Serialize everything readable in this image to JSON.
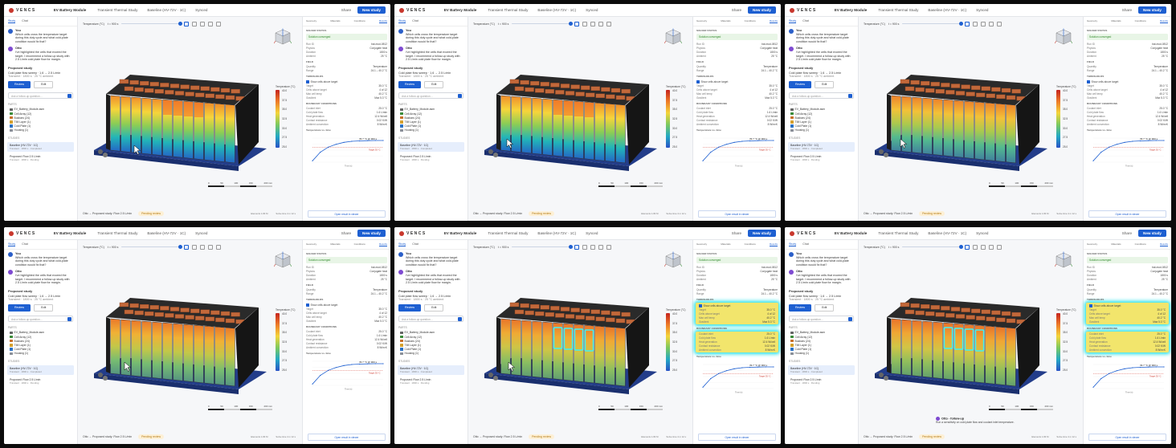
{
  "app": {
    "brand": "VENCS",
    "title": "EV Battery Module",
    "tab_study": "Transient Thermal Study",
    "baseline": "Baseline (HV-72V · 1C)",
    "sync": "Synced",
    "share": "Share",
    "new_study": "New study"
  },
  "left": {
    "tabs": [
      "Study",
      "Chat"
    ],
    "messages": [
      {
        "role": "You",
        "time": "09:41",
        "text": "Which cells cross the temperature target during this duty cycle and what cold-plate condition would fix that?"
      },
      {
        "role": "Otto",
        "time": "09:41",
        "text": "I've highlighted the cells that exceed the target. I recommend a follow-up study with 2.5 L/min cold plate flow for margin."
      }
    ],
    "proposed": {
      "title": "Proposed study",
      "desc": "Cold plate flow sweep · 1.6 → 2.5 L/min",
      "desc2": "Transient · 1800 s · 25 °C ambient",
      "accept": "Review",
      "edit": "Edit"
    },
    "ask_placeholder": "Ask a follow-up question…",
    "parts_header": "PARTS",
    "parts": [
      {
        "label": "EV_Battery_Module.asm",
        "color": "#666"
      },
      {
        "label": "Cell Array (12)",
        "color": "#3a8c3a"
      },
      {
        "label": "Busbars (24)",
        "color": "#c9702b"
      },
      {
        "label": "TIM Layer (1)",
        "color": "#d6a12e"
      },
      {
        "label": "Cold Plate (1)",
        "color": "#2b72c6"
      },
      {
        "label": "Housing (1)",
        "color": "#8a8f98"
      }
    ],
    "studies_header": "STUDIES",
    "studies": [
      {
        "label": "Baseline (HV-72V · 1C)",
        "sub": "Transient · 1800 s · Completed",
        "selected": true
      },
      {
        "label": "Proposed: Flow 2.5 L/min",
        "sub": "Transient · 1800 s · Pending",
        "selected": false
      }
    ]
  },
  "viewport": {
    "quantity": "Temperature (°C)",
    "time": "t = 900 s",
    "legend_title": "Temperature (°C)",
    "legend_ticks": [
      "40.0",
      "37.5",
      "35.0",
      "32.5",
      "30.0",
      "27.5",
      "25.0"
    ],
    "scale_labels": [
      "0",
      "50",
      "100",
      "150",
      "200 mm"
    ],
    "status_text": "Otto → Proposed study: Flow 2.5 L/min",
    "status_pill": "Pending review",
    "stats": [
      {
        "label": "Elements",
        "value": "1.84 M"
      },
      {
        "label": "Solve time",
        "value": "4 m 12 s"
      }
    ]
  },
  "right": {
    "tabs": [
      "Geometry",
      "Materials",
      "Conditions",
      "Results"
    ],
    "active_tab": "Results",
    "solver_header": "SOLVER STATUS",
    "solver_badge": "Solution converged",
    "solver_kv": [
      {
        "k": "Run ID",
        "v": "bat-mod-0812"
      },
      {
        "k": "Physics",
        "v": "Conjugate heat"
      },
      {
        "k": "Duration",
        "v": "1800 s"
      },
      {
        "k": "Ambient",
        "v": "25 °C"
      }
    ],
    "field_header": "FIELD",
    "field_kv": [
      {
        "k": "Quantity",
        "v": "Temperature"
      },
      {
        "k": "Range",
        "v": "24.1 – 40.2 °C"
      }
    ],
    "thresholds_header": "THRESHOLDS",
    "threshold_check": "Show cells above target",
    "threshold_kv": [
      {
        "k": "Target",
        "v": "35.0 °C"
      },
      {
        "k": "Cells above target",
        "v": "4 of 12"
      },
      {
        "k": "Max cell temp",
        "v": "40.2 °C"
      },
      {
        "k": "Gradient",
        "v": "Max 5.3 °C"
      }
    ],
    "boundary_header": "BOUNDARY CONDITIONS",
    "boundary_rows": [
      {
        "k": "Coolant inlet",
        "v": "25.0 °C"
      },
      {
        "k": "Cold plate flow",
        "v": "1.6 L/min"
      },
      {
        "k": "Heat generation",
        "v": "12.4 W/cell"
      },
      {
        "k": "Contact resistance",
        "v": "0.02 K/W"
      },
      {
        "k": "Ambient convection",
        "v": "8 W/m²K"
      }
    ],
    "chart_header": "Temperature vs. time",
    "chart_tooltip": "39.7 °C @ 900 s",
    "chart_target": "Target 35 °C",
    "chart_xlabel": "Time (s)",
    "open_viewer": "Open result in viewer",
    "followup_title": "Otto · follow-up",
    "followup_text": "Run a sensitivity on cold plate flow and coolant inlet temperature."
  },
  "chart_data": {
    "type": "line",
    "title": "Temperature vs. time",
    "xlabel": "Time (s)",
    "ylabel": "Temperature (°C)",
    "x": [
      0,
      200,
      400,
      600,
      800,
      1000,
      1200,
      1400,
      1600,
      1800
    ],
    "y": [
      25.0,
      31.5,
      35.2,
      37.4,
      38.8,
      39.6,
      39.9,
      40.1,
      40.2,
      40.2
    ],
    "ylim": [
      24,
      42
    ],
    "target": 35
  }
}
